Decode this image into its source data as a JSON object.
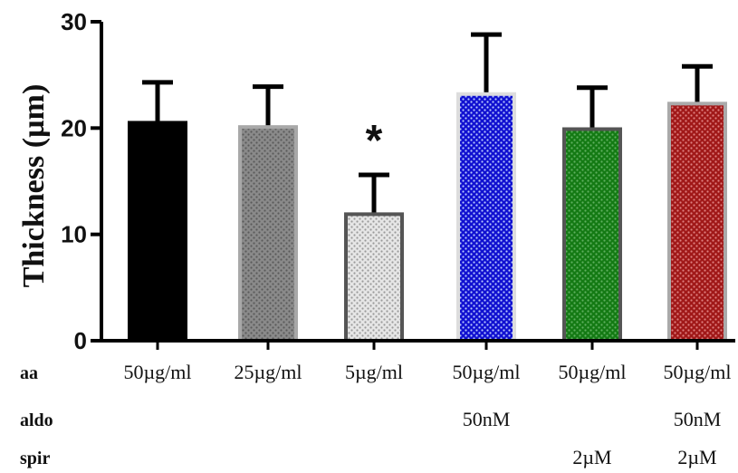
{
  "chart_data": {
    "type": "bar",
    "ylabel": "Thickness (µm)",
    "ylim": [
      0,
      30
    ],
    "yticks": [
      0,
      10,
      20,
      30
    ],
    "categories": [
      "50µg/ml",
      "25µg/ml",
      "5µg/ml",
      "50µg/ml",
      "50µg/ml",
      "50µg/ml"
    ],
    "values": [
      20.5,
      20.1,
      11.9,
      23.2,
      19.9,
      22.3
    ],
    "errors": [
      3.8,
      3.8,
      3.7,
      5.6,
      3.9,
      3.5
    ],
    "significance": [
      "",
      "",
      "*",
      "",
      "",
      ""
    ],
    "bar_styles": [
      {
        "fill": "#000000",
        "dot": "#000000",
        "border": "#000000"
      },
      {
        "fill": "#8a8a8a",
        "dot": "#5a5a5a",
        "border": "#a8a8a8"
      },
      {
        "fill": "#e6e6e6",
        "dot": "#9a9a9a",
        "border": "#555555"
      },
      {
        "fill": "#1010d0",
        "dot": "#b8c8ff",
        "border": "#dddddd"
      },
      {
        "fill": "#147a14",
        "dot": "#5fb05f",
        "border": "#555555"
      },
      {
        "fill": "#a01818",
        "dot": "#e08080",
        "border": "#aaaaaa"
      }
    ],
    "condition_rows": [
      {
        "label": "aa",
        "values": [
          "50µg/ml",
          "25µg/ml",
          "5µg/ml",
          "50µg/ml",
          "50µg/ml",
          "50µg/ml"
        ]
      },
      {
        "label": "aldo",
        "values": [
          "",
          "",
          "",
          "50nM",
          "",
          "50nM"
        ]
      },
      {
        "label": "spir",
        "values": [
          "",
          "",
          "",
          "",
          "2µM",
          "2µM"
        ]
      }
    ]
  }
}
